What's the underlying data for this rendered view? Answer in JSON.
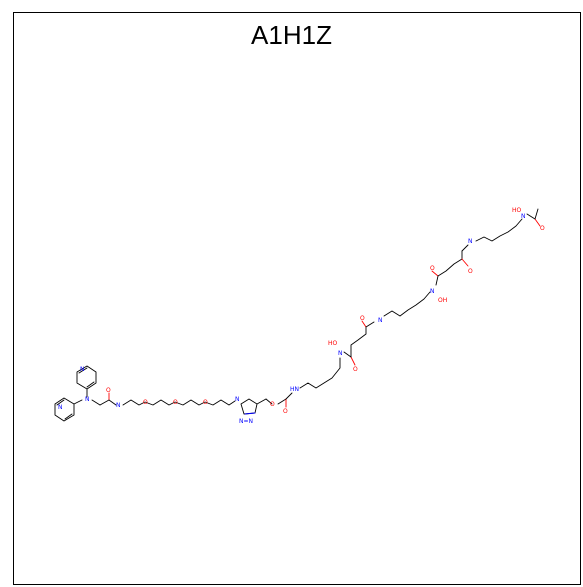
{
  "title": "A1H1Z",
  "atom_labels": {
    "N": "N",
    "O": "O",
    "HO": "HO",
    "OH": "OH",
    "HN": "HN",
    "N_EQ_N": "N=N"
  }
}
